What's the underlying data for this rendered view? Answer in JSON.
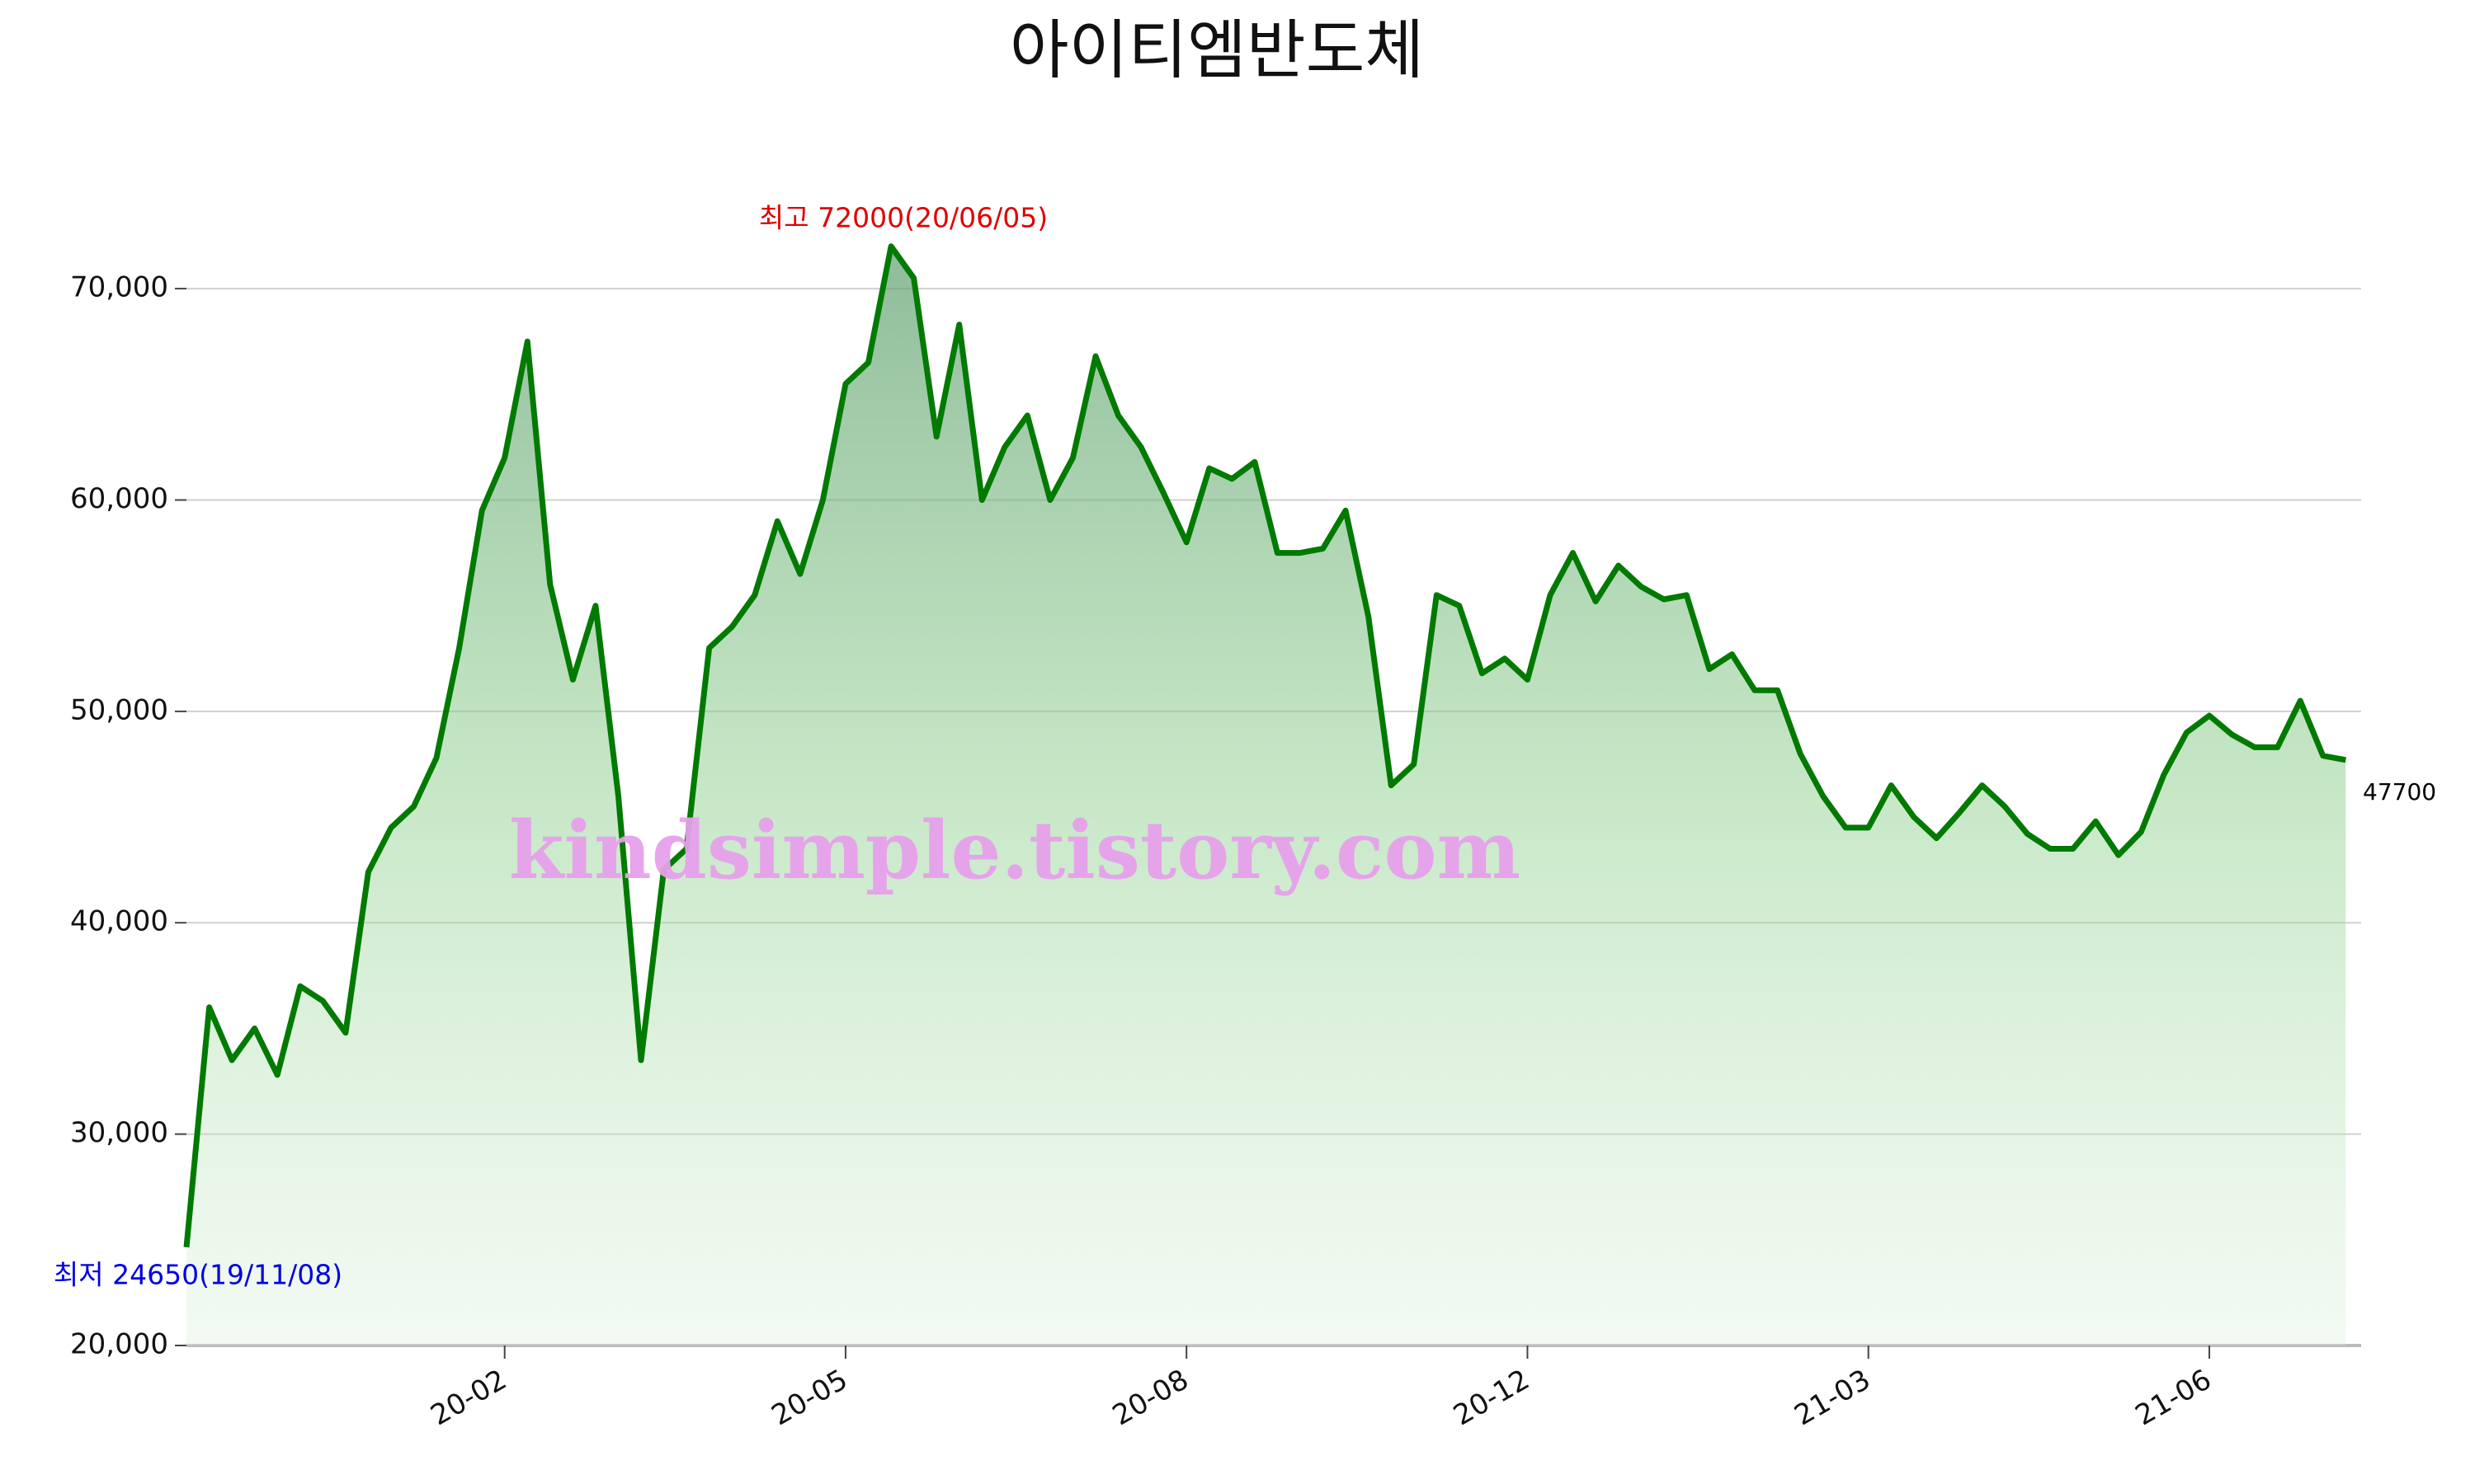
{
  "chart_data": {
    "type": "area",
    "title": "아이티엠반도체",
    "categories": [
      null,
      null,
      null,
      null,
      null,
      null,
      null,
      null,
      null,
      null,
      null,
      null,
      null,
      null,
      "20-02",
      null,
      null,
      null,
      null,
      null,
      null,
      null,
      null,
      null,
      null,
      null,
      null,
      null,
      null,
      "20-05",
      null,
      null,
      null,
      null,
      null,
      null,
      null,
      null,
      null,
      null,
      null,
      null,
      null,
      null,
      "20-08",
      null,
      null,
      null,
      null,
      null,
      null,
      null,
      null,
      null,
      null,
      null,
      null,
      null,
      null,
      "20-12",
      null,
      null,
      null,
      null,
      null,
      null,
      null,
      null,
      null,
      null,
      null,
      null,
      null,
      null,
      "21-03",
      null,
      null,
      null,
      null,
      null,
      null,
      null,
      null,
      null,
      null,
      null,
      null,
      null,
      null,
      "21-06",
      null,
      null,
      null,
      null,
      null,
      null
    ],
    "values": [
      24650,
      36000,
      33500,
      35000,
      32800,
      37000,
      36300,
      34800,
      42400,
      44500,
      45500,
      47800,
      53000,
      59500,
      62000,
      67500,
      56000,
      51500,
      55000,
      46000,
      33500,
      42500,
      43500,
      53000,
      54000,
      55500,
      59000,
      56500,
      60000,
      65500,
      66500,
      72000,
      70500,
      63000,
      68300,
      60000,
      62500,
      64000,
      60000,
      62000,
      66800,
      64000,
      62500,
      60300,
      58000,
      61500,
      61000,
      61800,
      57500,
      57500,
      57700,
      59500,
      54500,
      46500,
      47500,
      55500,
      55000,
      51800,
      52500,
      51500,
      55500,
      57500,
      55200,
      56900,
      55900,
      55300,
      55500,
      52000,
      52700,
      51000,
      51000,
      48000,
      46000,
      44500,
      44500,
      46500,
      45000,
      44000,
      45200,
      46500,
      45500,
      44200,
      43500,
      43500,
      44800,
      43200,
      44300,
      47000,
      49000,
      49800,
      48900,
      48300,
      48300,
      50500,
      47900,
      47700
    ],
    "color": "#007a00",
    "ylim": [
      20000,
      72500
    ],
    "yticks": [
      {
        "value": 20000,
        "label": "20,000"
      },
      {
        "value": 30000,
        "label": "30,000"
      },
      {
        "value": 40000,
        "label": "40,000"
      },
      {
        "value": 50000,
        "label": "50,000"
      },
      {
        "value": 60000,
        "label": "60,000"
      },
      {
        "value": 70000,
        "label": "70,000"
      }
    ],
    "grid": true,
    "annotations": [
      {
        "text": "최고 72000(20/06/05)",
        "color": "#e00000"
      },
      {
        "text": "최저 24650(19/11/08)",
        "color": "#0000e0"
      },
      {
        "text": "47700",
        "color": "#000000"
      }
    ],
    "watermark": {
      "text": "kindsimple.tistory.com",
      "color": "#e6a0ea"
    }
  }
}
